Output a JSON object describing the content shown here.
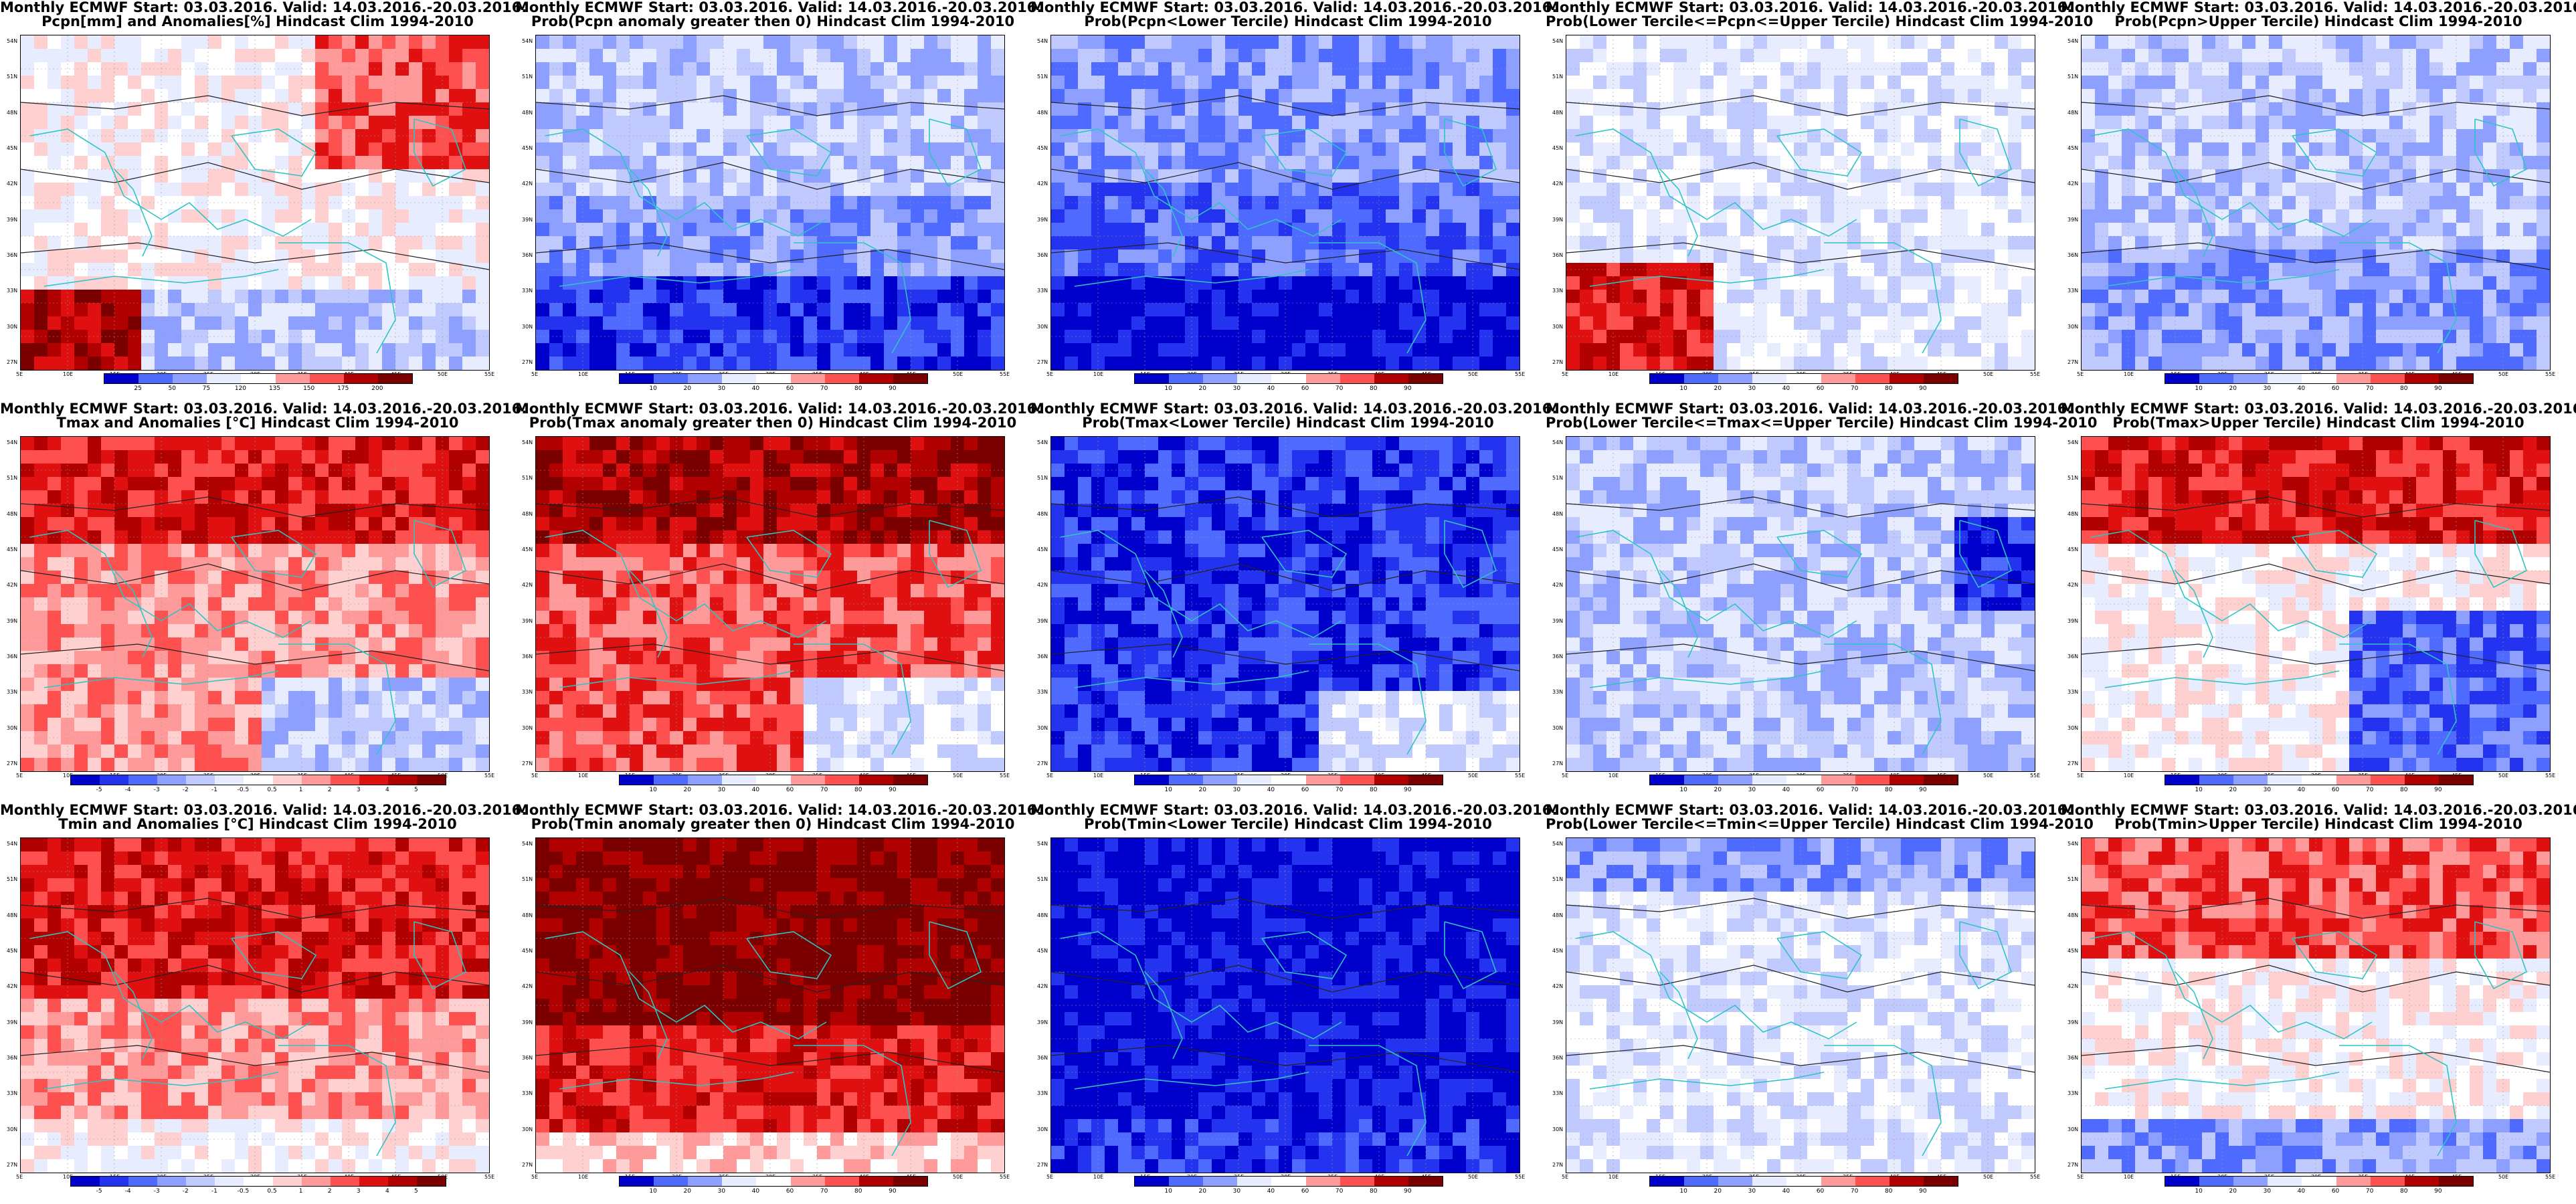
{
  "map_extent": {
    "lon_min": 5,
    "lon_max": 55,
    "lat_min": 25,
    "lat_max": 55
  },
  "lon_ticks": [
    "5E",
    "10E",
    "15E",
    "20E",
    "25E",
    "30E",
    "35E",
    "40E",
    "45E",
    "50E",
    "55E"
  ],
  "lat_ticks": [
    "54N",
    "51N",
    "48N",
    "45N",
    "42N",
    "39N",
    "36N",
    "33N",
    "30N",
    "27N"
  ],
  "colors": {
    "coast_line": "#2ec4c4",
    "contour_line": "#222222",
    "neutral": "#ffffff",
    "prob_scale": [
      "#0000cc",
      "#2433f0",
      "#4f6bff",
      "#8da0ff",
      "#c0caff",
      "#e8ecff",
      "#ffffff",
      "#ffd0d0",
      "#ff9a9a",
      "#ff5050",
      "#e01010",
      "#b00000",
      "#7a0000"
    ]
  },
  "panels": [
    {
      "id": "pcpn-anom",
      "title1": "Monthly ECMWF Start: 03.03.2016. Valid: 14.03.2016.-20.03.2016.",
      "title2": "Pcpn[mm] and Anomalies[%] Hindcast Clim 1994-2010",
      "scale": "pcpn",
      "labels": [
        "25",
        "50",
        "75",
        "120",
        "135",
        "150",
        "175",
        "200"
      ]
    },
    {
      "id": "pcpn-prob-pos",
      "title1": "Monthly ECMWF Start: 03.03.2016. Valid: 14.03.2016.-20.03.2016.",
      "title2": "Prob(Pcpn anomaly greater then 0) Hindcast Clim 1994-2010",
      "scale": "prob",
      "labels": [
        "10",
        "20",
        "30",
        "40",
        "60",
        "70",
        "80",
        "90"
      ]
    },
    {
      "id": "pcpn-prob-lower",
      "title1": "Monthly ECMWF Start: 03.03.2016. Valid: 14.03.2016.-20.03.2016.",
      "title2": "Prob(Pcpn<Lower Tercile) Hindcast Clim 1994-2010",
      "scale": "prob",
      "labels": [
        "10",
        "20",
        "30",
        "40",
        "60",
        "70",
        "80",
        "90"
      ]
    },
    {
      "id": "pcpn-prob-middle",
      "title1": "Monthly ECMWF Start: 03.03.2016. Valid: 14.03.2016.-20.03.2016.",
      "title2": "Prob(Lower Tercile<=Pcpn<=Upper Tercile) Hindcast Clim 1994-2010",
      "scale": "prob",
      "labels": [
        "10",
        "20",
        "30",
        "40",
        "60",
        "70",
        "80",
        "90"
      ]
    },
    {
      "id": "pcpn-prob-upper",
      "title1": "Monthly ECMWF Start: 03.03.2016. Valid: 14.03.2016.-20.03.2016.",
      "title2": "Prob(Pcpn>Upper Tercile) Hindcast Clim 1994-2010",
      "scale": "prob",
      "labels": [
        "10",
        "20",
        "30",
        "40",
        "60",
        "70",
        "80",
        "90"
      ]
    },
    {
      "id": "tmax-anom",
      "title1": "Monthly ECMWF Start: 03.03.2016. Valid: 14.03.2016.-20.03.2016.",
      "title2": "Tmax and Anomalies [°C] Hindcast Clim 1994-2010",
      "scale": "temp",
      "labels": [
        "-5",
        "-4",
        "-3",
        "-2",
        "-1",
        "-0.5",
        "0.5",
        "1",
        "2",
        "3",
        "4",
        "5"
      ]
    },
    {
      "id": "tmax-prob-pos",
      "title1": "Monthly ECMWF Start: 03.03.2016. Valid: 14.03.2016.-20.03.2016.",
      "title2": "Prob(Tmax anomaly greater then 0) Hindcast Clim 1994-2010",
      "scale": "prob",
      "labels": [
        "10",
        "20",
        "30",
        "40",
        "60",
        "70",
        "80",
        "90"
      ]
    },
    {
      "id": "tmax-prob-lower",
      "title1": "Monthly ECMWF Start: 03.03.2016. Valid: 14.03.2016.-20.03.2016.",
      "title2": "Prob(Tmax<Lower Tercile) Hindcast Clim 1994-2010",
      "scale": "prob",
      "labels": [
        "10",
        "20",
        "30",
        "40",
        "60",
        "70",
        "80",
        "90"
      ]
    },
    {
      "id": "tmax-prob-middle",
      "title1": "Monthly ECMWF Start: 03.03.2016. Valid: 14.03.2016.-20.03.2016.",
      "title2": "Prob(Lower Tercile<=Tmax<=Upper Tercile) Hindcast Clim 1994-2010",
      "scale": "prob",
      "labels": [
        "10",
        "20",
        "30",
        "40",
        "60",
        "70",
        "80",
        "90"
      ]
    },
    {
      "id": "tmax-prob-upper",
      "title1": "Monthly ECMWF Start: 03.03.2016. Valid: 14.03.2016.-20.03.2016.",
      "title2": "Prob(Tmax>Upper Tercile) Hindcast Clim 1994-2010",
      "scale": "prob",
      "labels": [
        "10",
        "20",
        "30",
        "40",
        "60",
        "70",
        "80",
        "90"
      ]
    },
    {
      "id": "tmin-anom",
      "title1": "Monthly ECMWF Start: 03.03.2016. Valid: 14.03.2016.-20.03.2016.",
      "title2": "Tmin and Anomalies [°C] Hindcast Clim 1994-2010",
      "scale": "temp",
      "labels": [
        "-5",
        "-4",
        "-3",
        "-2",
        "-1",
        "-0.5",
        "0.5",
        "1",
        "2",
        "3",
        "4",
        "5"
      ]
    },
    {
      "id": "tmin-prob-pos",
      "title1": "Monthly ECMWF Start: 03.03.2016. Valid: 14.03.2016.-20.03.2016.",
      "title2": "Prob(Tmin anomaly greater then 0) Hindcast Clim 1994-2010",
      "scale": "prob",
      "labels": [
        "10",
        "20",
        "30",
        "40",
        "60",
        "70",
        "80",
        "90"
      ]
    },
    {
      "id": "tmin-prob-lower",
      "title1": "Monthly ECMWF Start: 03.03.2016. Valid: 14.03.2016.-20.03.2016.",
      "title2": "Prob(Tmin<Lower Tercile) Hindcast Clim 1994-2010",
      "scale": "prob",
      "labels": [
        "10",
        "20",
        "30",
        "40",
        "60",
        "70",
        "80",
        "90"
      ]
    },
    {
      "id": "tmin-prob-middle",
      "title1": "Monthly ECMWF Start: 03.03.2016. Valid: 14.03.2016.-20.03.2016.",
      "title2": "Prob(Lower Tercile<=Tmin<=Upper Tercile) Hindcast Clim 1994-2010",
      "scale": "prob",
      "labels": [
        "10",
        "20",
        "30",
        "40",
        "60",
        "70",
        "80",
        "90"
      ]
    },
    {
      "id": "tmin-prob-upper",
      "title1": "Monthly ECMWF Start: 03.03.2016. Valid: 14.03.2016.-20.03.2016.",
      "title2": "Prob(Tmin>Upper Tercile) Hindcast Clim 1994-2010",
      "scale": "prob",
      "labels": [
        "10",
        "20",
        "30",
        "40",
        "60",
        "70",
        "80",
        "90"
      ]
    }
  ]
}
